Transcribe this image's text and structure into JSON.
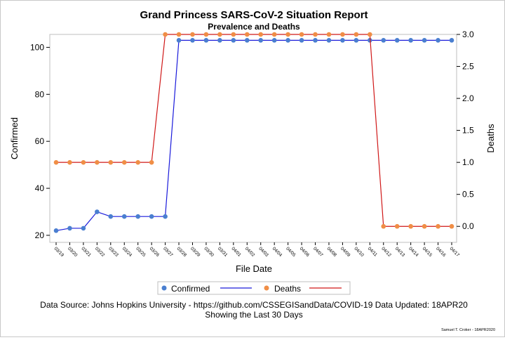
{
  "chart_data": {
    "type": "line",
    "title": "Grand Princess SARS-CoV-2 Situation Report",
    "subtitle": "Prevalence and Deaths",
    "xlabel": "File Date",
    "ylabel_left": "Confirmed",
    "ylabel_right": "Deaths",
    "categories": [
      "03/19",
      "03/20",
      "03/21",
      "03/22",
      "03/23",
      "03/24",
      "03/25",
      "03/26",
      "03/27",
      "03/28",
      "03/29",
      "03/30",
      "03/31",
      "04/01",
      "04/02",
      "04/03",
      "04/04",
      "04/05",
      "04/06",
      "04/07",
      "04/08",
      "04/09",
      "04/10",
      "04/11",
      "04/12",
      "04/13",
      "04/14",
      "04/15",
      "04/16",
      "04/17"
    ],
    "ylim_left": [
      17,
      105.5
    ],
    "yticks_left": [
      20,
      40,
      60,
      80,
      100
    ],
    "ylim_right": [
      -0.25,
      3.0
    ],
    "yticks_right": [
      "0.0",
      "0.5",
      "1.0",
      "1.5",
      "2.0",
      "2.5",
      "3.0"
    ],
    "grid": false,
    "legend_position": "bottom",
    "series": [
      {
        "name": "Confirmed",
        "axis": "left",
        "line_color": "#1a1adb",
        "marker_color": "#4a7fd0",
        "values": [
          22,
          23,
          23,
          30,
          28,
          28,
          28,
          28,
          28,
          103,
          103,
          103,
          103,
          103,
          103,
          103,
          103,
          103,
          103,
          103,
          103,
          103,
          103,
          103,
          103,
          103,
          103,
          103,
          103,
          103
        ]
      },
      {
        "name": "Deaths",
        "axis": "right",
        "line_color": "#d01818",
        "marker_color": "#f08e46",
        "values": [
          1,
          1,
          1,
          1,
          1,
          1,
          1,
          1,
          3,
          3,
          3,
          3,
          3,
          3,
          3,
          3,
          3,
          3,
          3,
          3,
          3,
          3,
          3,
          3,
          0,
          0,
          0,
          0,
          0,
          0
        ]
      }
    ],
    "footnote_line1": "Data Source: Johns Hopkins University - https://github.com/CSSEGISandData/COVID-19 Data Updated: 18APR20",
    "footnote_line2": "Showing the Last 30 Days",
    "credit": "Samuel T. Croker - 18APR2020"
  }
}
